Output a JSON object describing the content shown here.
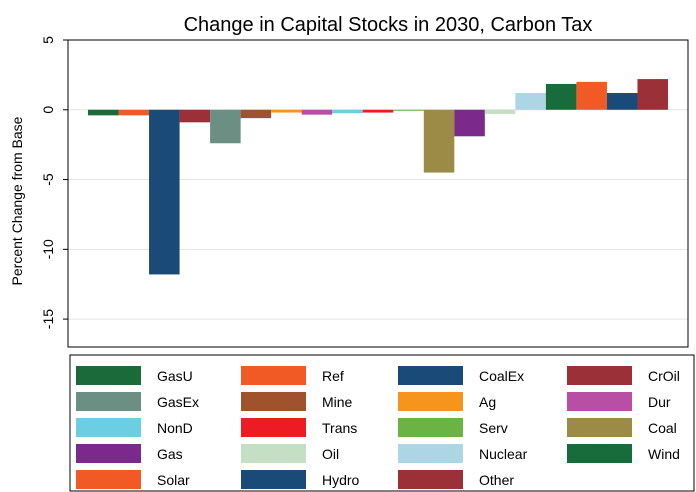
{
  "chart_data": {
    "type": "bar",
    "title": "Change in Capital Stocks in 2030, Carbon Tax",
    "xlabel": "",
    "ylabel": "Percent Change from Base",
    "ylim": [
      -17,
      5
    ],
    "yticks": [
      5,
      0,
      -5,
      -10,
      -15
    ],
    "ytick_labels": [
      "5",
      "0",
      "-5",
      "-10",
      "-15"
    ],
    "grid": true,
    "legend_position": "bottom",
    "series": [
      {
        "name": "GasU",
        "value": -0.4,
        "color": "#1b6b3a"
      },
      {
        "name": "Ref",
        "value": -0.4,
        "color": "#f15a24"
      },
      {
        "name": "CoalEx",
        "value": -11.8,
        "color": "#1a4a78"
      },
      {
        "name": "CrOil",
        "value": -0.9,
        "color": "#9b3039"
      },
      {
        "name": "GasEx",
        "value": -2.4,
        "color": "#6b8f82"
      },
      {
        "name": "Mine",
        "value": -0.6,
        "color": "#a0522d"
      },
      {
        "name": "Ag",
        "value": -0.2,
        "color": "#f7941d"
      },
      {
        "name": "Dur",
        "value": -0.35,
        "color": "#b84fa4"
      },
      {
        "name": "NonD",
        "value": -0.25,
        "color": "#6dcde1"
      },
      {
        "name": "Trans",
        "value": -0.2,
        "color": "#ed1c24"
      },
      {
        "name": "Serv",
        "value": -0.05,
        "color": "#6ab344"
      },
      {
        "name": "Coal",
        "value": -4.5,
        "color": "#9c8a47"
      },
      {
        "name": "Gas",
        "value": -1.9,
        "color": "#7b2a8b"
      },
      {
        "name": "Oil",
        "value": -0.3,
        "color": "#c5dfc4"
      },
      {
        "name": "Nuclear",
        "value": 1.2,
        "color": "#acd6e4"
      },
      {
        "name": "Wind",
        "value": 1.85,
        "color": "#186b3b"
      },
      {
        "name": "Solar",
        "value": 2.0,
        "color": "#f15a24"
      },
      {
        "name": "Hydro",
        "value": 1.2,
        "color": "#1a4a78"
      },
      {
        "name": "Other",
        "value": 2.2,
        "color": "#9b3039"
      }
    ]
  }
}
